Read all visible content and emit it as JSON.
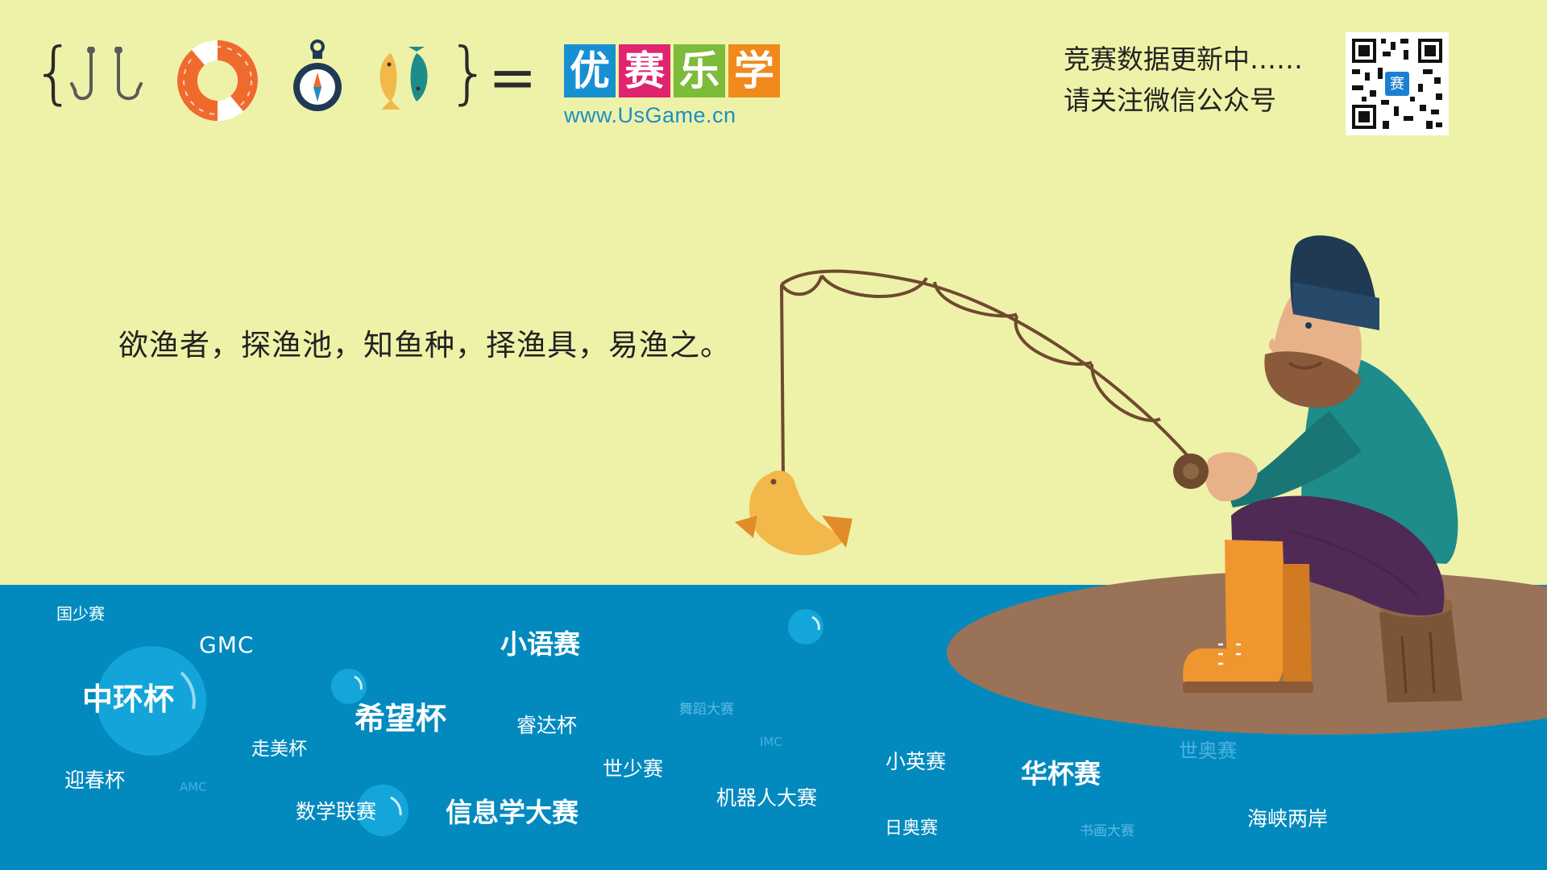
{
  "header": {
    "brace_open": "{",
    "brace_close": "}",
    "equals": "=",
    "icons": [
      "fishhook-icon",
      "lifebuoy-icon",
      "compass-icon",
      "fish-pair-icon"
    ],
    "logo": {
      "chars": [
        "优",
        "赛",
        "乐",
        "学"
      ],
      "tile_colors": [
        "#1790d2",
        "#e0246f",
        "#7dbb3a",
        "#f08a1c"
      ],
      "url": "www.UsGame.cn"
    },
    "notice": {
      "line1": "竞赛数据更新中……",
      "line2": "请关注微信公众号"
    },
    "qr_center_char": "赛"
  },
  "tagline": "欲渔者，探渔池，知鱼种，择渔具，易渔之。",
  "competitions": [
    {
      "id": "guoshaosai",
      "text": "国少赛"
    },
    {
      "id": "gmc",
      "text": "GMC"
    },
    {
      "id": "xiaoyusai",
      "text": "小语赛"
    },
    {
      "id": "zhonghuanbei",
      "text": "中环杯"
    },
    {
      "id": "xiwangbei",
      "text": "希望杯"
    },
    {
      "id": "ruidabei",
      "text": "睿达杯"
    },
    {
      "id": "wudaodasai",
      "text": "舞蹈大赛"
    },
    {
      "id": "zoumeibei",
      "text": "走美杯"
    },
    {
      "id": "imc",
      "text": "IMC"
    },
    {
      "id": "yingchunbei",
      "text": "迎春杯"
    },
    {
      "id": "amc",
      "text": "AMC"
    },
    {
      "id": "shishaosai",
      "text": "世少赛"
    },
    {
      "id": "xiaoyingsai",
      "text": "小英赛"
    },
    {
      "id": "huabeisai",
      "text": "华杯赛"
    },
    {
      "id": "shiaosai",
      "text": "世奥赛"
    },
    {
      "id": "shuxuelian",
      "text": "数学联赛"
    },
    {
      "id": "xinxixue",
      "text": "信息学大赛"
    },
    {
      "id": "jiqiren",
      "text": "机器人大赛"
    },
    {
      "id": "riaosai",
      "text": "日奥赛"
    },
    {
      "id": "shuhua",
      "text": "书画大赛"
    },
    {
      "id": "haixia",
      "text": "海峡两岸"
    }
  ],
  "colors": {
    "sky": "#eef2a8",
    "sea": "#028abf",
    "shore": "#9a7257",
    "coat": "#1e8c8a",
    "hat": "#1f3a52",
    "trousers": "#4f2a55",
    "boots": "#f0962e",
    "fish": "#f2b94a"
  }
}
